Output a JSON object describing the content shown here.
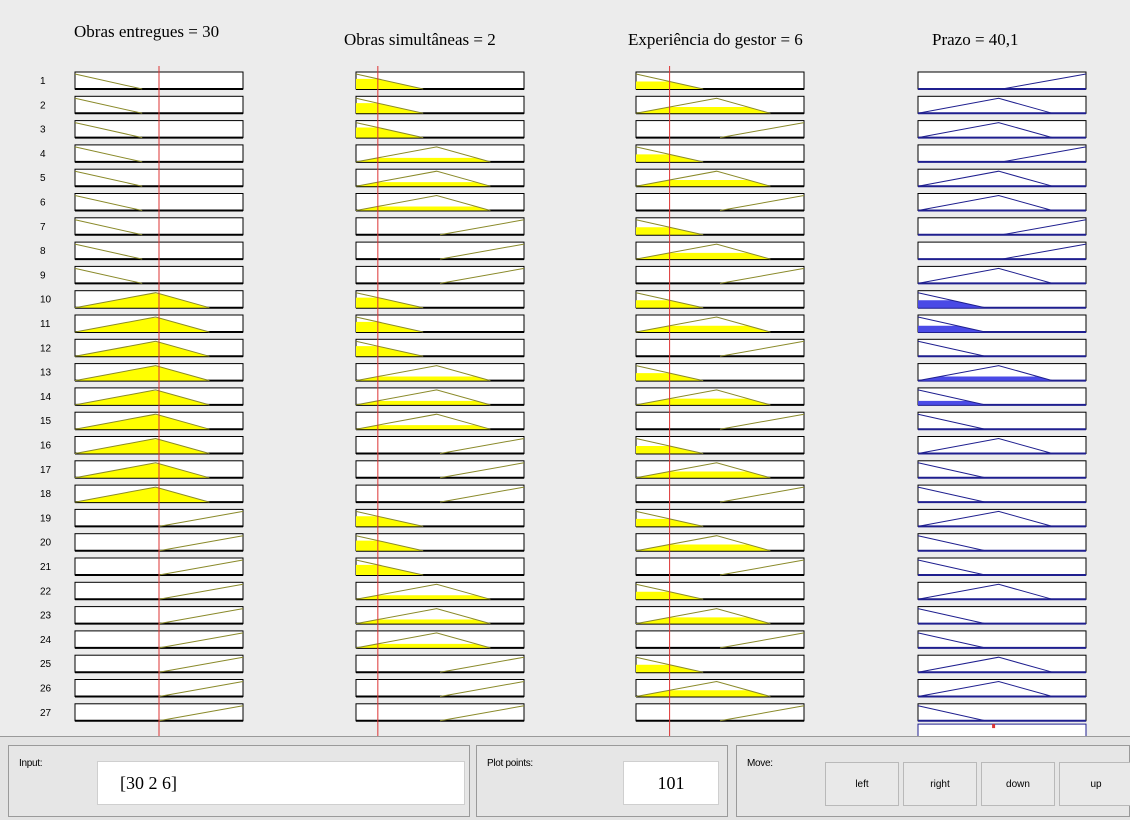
{
  "titles": [
    "Obras entregues = 30",
    "Obras simultâneas = 2",
    "Experiência do gestor = 6",
    "Prazo = 40,1"
  ],
  "rule_numbers": [
    "1",
    "2",
    "3",
    "4",
    "5",
    "6",
    "7",
    "8",
    "9",
    "10",
    "11",
    "12",
    "13",
    "14",
    "15",
    "16",
    "17",
    "18",
    "19",
    "20",
    "21",
    "22",
    "23",
    "24",
    "25",
    "26",
    "27"
  ],
  "rules": [
    [
      0,
      0,
      0,
      2
    ],
    [
      0,
      0,
      1,
      1
    ],
    [
      0,
      0,
      2,
      1
    ],
    [
      0,
      1,
      0,
      2
    ],
    [
      0,
      1,
      1,
      1
    ],
    [
      0,
      1,
      2,
      1
    ],
    [
      0,
      2,
      0,
      2
    ],
    [
      0,
      2,
      1,
      2
    ],
    [
      0,
      2,
      2,
      1
    ],
    [
      1,
      0,
      0,
      0
    ],
    [
      1,
      0,
      1,
      0
    ],
    [
      1,
      0,
      2,
      0
    ],
    [
      1,
      1,
      0,
      1
    ],
    [
      1,
      1,
      1,
      0
    ],
    [
      1,
      1,
      2,
      0
    ],
    [
      1,
      2,
      0,
      1
    ],
    [
      1,
      2,
      1,
      0
    ],
    [
      1,
      2,
      2,
      0
    ],
    [
      2,
      0,
      0,
      1
    ],
    [
      2,
      0,
      1,
      0
    ],
    [
      2,
      0,
      2,
      0
    ],
    [
      2,
      1,
      0,
      1
    ],
    [
      2,
      1,
      1,
      0
    ],
    [
      2,
      1,
      2,
      0
    ],
    [
      2,
      2,
      0,
      1
    ],
    [
      2,
      2,
      1,
      1
    ],
    [
      2,
      2,
      2,
      0
    ]
  ],
  "input_values": [
    30,
    2,
    6
  ],
  "output_value": 40.1,
  "colors": {
    "input_fill": "#ffff00",
    "input_line": "#8a8a2a",
    "output_fill": "#4a4ae6",
    "output_line": "#1f1f8f",
    "index_line": "#dd3333"
  },
  "bottom": {
    "input_label": "Input:",
    "input_value": "[30 2 6]",
    "plot_label": "Plot points:",
    "plot_value": "101",
    "move_label": "Move:",
    "buttons": [
      "left",
      "right",
      "down",
      "up"
    ]
  }
}
